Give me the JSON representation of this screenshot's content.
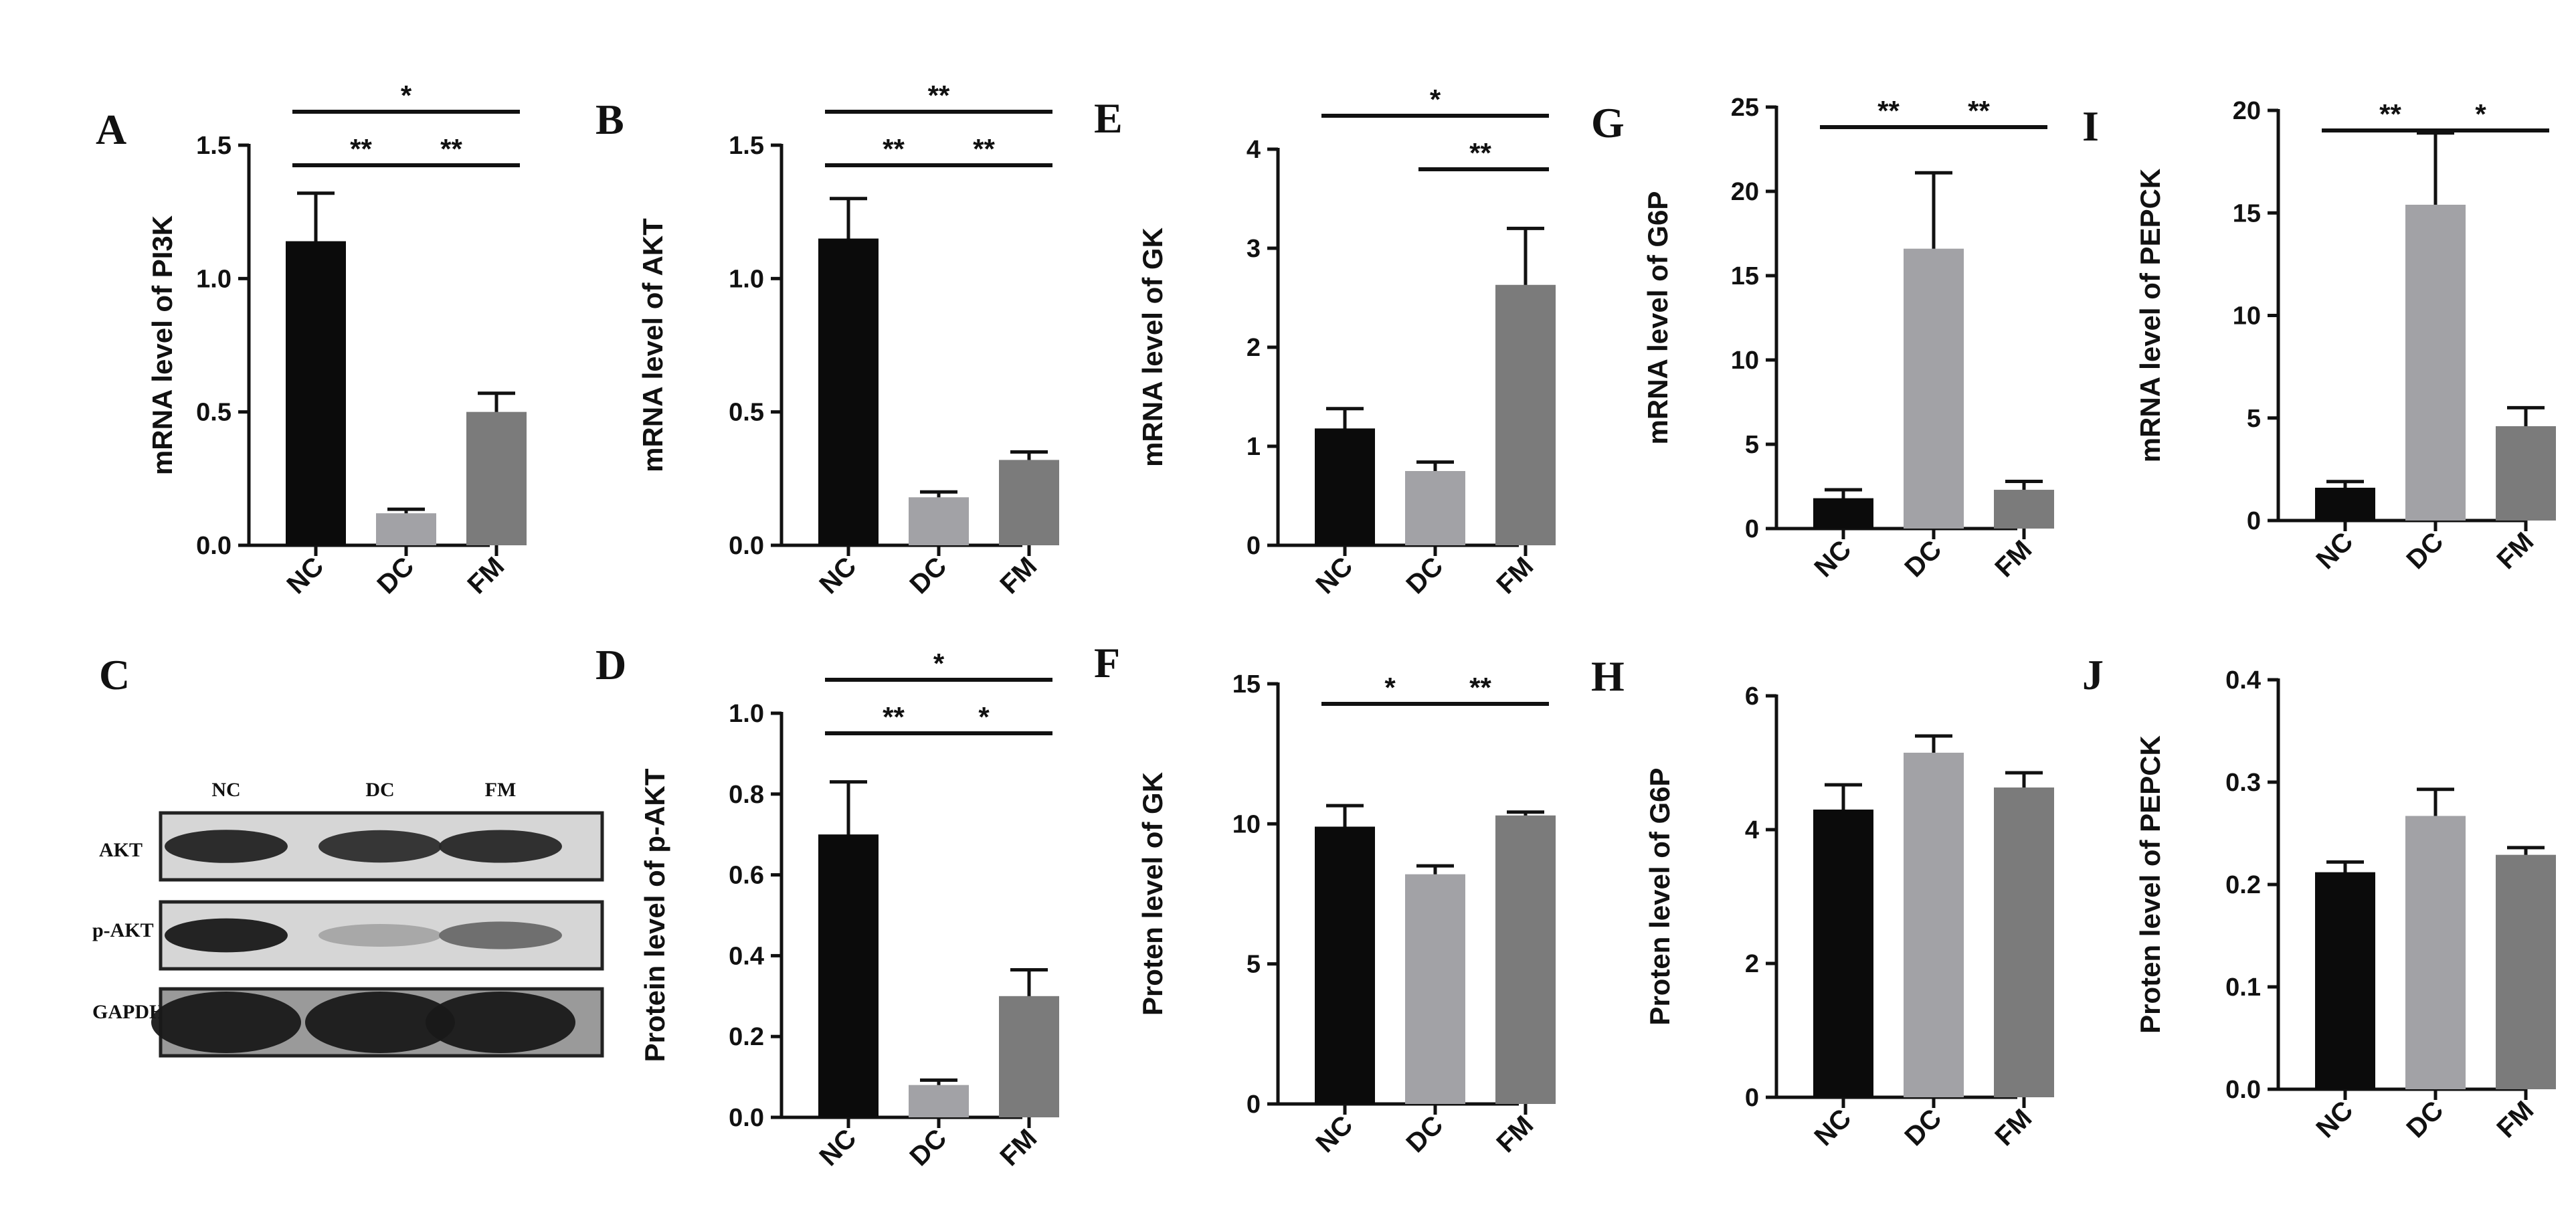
{
  "figure": {
    "colors": {
      "NC": "#0b0b0b",
      "DC": "#a2a2a6",
      "FM": "#7b7b7b",
      "axis": "#111111"
    }
  },
  "chart_data": [
    {
      "panel": "A",
      "type": "bar",
      "categories": [
        "NC",
        "DC",
        "FM"
      ],
      "values": [
        1.14,
        0.12,
        0.5
      ],
      "errors": [
        0.18,
        0.015,
        0.07
      ],
      "ylabel": "mRNA level of PI3K",
      "ylim": [
        0,
        1.5
      ],
      "yticks": [
        "0.0",
        "0.5",
        "1.0",
        "1.5"
      ],
      "significance": [
        {
          "from": "NC",
          "to": "DC",
          "label": "**",
          "level": 1
        },
        {
          "from": "DC",
          "to": "FM",
          "label": "**",
          "level": 1
        },
        {
          "from": "NC",
          "to": "FM",
          "label": "*",
          "level": 2
        }
      ]
    },
    {
      "panel": "B",
      "type": "bar",
      "categories": [
        "NC",
        "DC",
        "FM"
      ],
      "values": [
        1.15,
        0.18,
        0.32
      ],
      "errors": [
        0.15,
        0.02,
        0.03
      ],
      "ylabel": "mRNA  level of AKT",
      "ylim": [
        0,
        1.5
      ],
      "yticks": [
        "0.0",
        "0.5",
        "1.0",
        "1.5"
      ],
      "significance": [
        {
          "from": "NC",
          "to": "DC",
          "label": "**",
          "level": 1
        },
        {
          "from": "DC",
          "to": "FM",
          "label": "**",
          "level": 1
        },
        {
          "from": "NC",
          "to": "FM",
          "label": "**",
          "level": 2
        }
      ]
    },
    {
      "panel": "E",
      "type": "bar",
      "categories": [
        "NC",
        "DC",
        "FM"
      ],
      "values": [
        1.18,
        0.75,
        2.63
      ],
      "errors": [
        0.2,
        0.09,
        0.57
      ],
      "ylabel": "mRNA level of GK",
      "ylim": [
        0,
        4
      ],
      "yticks": [
        "0",
        "1",
        "2",
        "3",
        "4"
      ],
      "significance": [
        {
          "from": "DC",
          "to": "FM",
          "label": "**",
          "level": 1
        },
        {
          "from": "NC",
          "to": "FM",
          "label": "*",
          "level": 2
        }
      ]
    },
    {
      "panel": "G",
      "type": "bar",
      "categories": [
        "NC",
        "DC",
        "FM"
      ],
      "values": [
        1.8,
        16.6,
        2.3
      ],
      "errors": [
        0.5,
        4.5,
        0.5
      ],
      "ylabel": "mRNA level of G6P",
      "ylim": [
        0,
        25
      ],
      "yticks": [
        "0",
        "5",
        "10",
        "15",
        "20",
        "25"
      ],
      "significance": [
        {
          "from": "NC",
          "to": "DC",
          "label": "**",
          "level": 1
        },
        {
          "from": "DC",
          "to": "FM",
          "label": "**",
          "level": 1
        }
      ]
    },
    {
      "panel": "I",
      "type": "bar",
      "categories": [
        "NC",
        "DC",
        "FM"
      ],
      "values": [
        1.6,
        15.4,
        4.6
      ],
      "errors": [
        0.3,
        3.5,
        0.9
      ],
      "ylabel": "mRNA level of PEPCK",
      "ylim": [
        0,
        20
      ],
      "yticks": [
        "0",
        "5",
        "10",
        "15",
        "20"
      ],
      "significance": [
        {
          "from": "NC",
          "to": "DC",
          "label": "**",
          "level": 1
        },
        {
          "from": "DC",
          "to": "FM",
          "label": "*",
          "level": 1
        }
      ]
    },
    {
      "panel": "D",
      "type": "bar",
      "categories": [
        "NC",
        "DC",
        "FM"
      ],
      "values": [
        0.7,
        0.08,
        0.3
      ],
      "errors": [
        0.13,
        0.012,
        0.065
      ],
      "ylabel": "Protein level of p-AKT",
      "ylim": [
        0,
        1.0
      ],
      "yticks": [
        "0.0",
        "0.2",
        "0.4",
        "0.6",
        "0.8",
        "1.0"
      ],
      "significance": [
        {
          "from": "NC",
          "to": "DC",
          "label": "**",
          "level": 1
        },
        {
          "from": "DC",
          "to": "FM",
          "label": "*",
          "level": 1
        },
        {
          "from": "NC",
          "to": "FM",
          "label": "*",
          "level": 2
        }
      ]
    },
    {
      "panel": "F",
      "type": "bar",
      "categories": [
        "NC",
        "DC",
        "FM"
      ],
      "values": [
        9.9,
        8.2,
        10.3
      ],
      "errors": [
        0.75,
        0.3,
        0.12
      ],
      "ylabel": "Proten level of GK",
      "ylim": [
        0,
        15
      ],
      "yticks": [
        "0",
        "5",
        "10",
        "15"
      ],
      "significance": [
        {
          "from": "NC",
          "to": "DC",
          "label": "*",
          "level": 1
        },
        {
          "from": "DC",
          "to": "FM",
          "label": "**",
          "level": 1
        }
      ]
    },
    {
      "panel": "H",
      "type": "bar",
      "categories": [
        "NC",
        "DC",
        "FM"
      ],
      "values": [
        4.3,
        5.15,
        4.63
      ],
      "errors": [
        0.37,
        0.25,
        0.22
      ],
      "ylabel": "Proten level of G6P",
      "ylim": [
        0,
        6
      ],
      "yticks": [
        "0",
        "2",
        "4",
        "6"
      ],
      "significance": []
    },
    {
      "panel": "J",
      "type": "bar",
      "categories": [
        "NC",
        "DC",
        "FM"
      ],
      "values": [
        0.212,
        0.267,
        0.229
      ],
      "errors": [
        0.01,
        0.026,
        0.007
      ],
      "ylabel": "Proten level of PEPCK",
      "ylim": [
        0,
        0.4
      ],
      "yticks": [
        "0.0",
        "0.1",
        "0.2",
        "0.3",
        "0.4"
      ],
      "significance": []
    }
  ],
  "blot": {
    "panel": "C",
    "lanes": [
      "NC",
      "DC",
      "FM"
    ],
    "rows": [
      {
        "label": "AKT",
        "intensity": [
          0.9,
          0.85,
          0.88
        ]
      },
      {
        "label": "p-AKT",
        "intensity": [
          0.95,
          0.25,
          0.55
        ]
      },
      {
        "label": "GAPDH",
        "intensity": [
          0.95,
          0.95,
          0.95
        ]
      }
    ]
  }
}
